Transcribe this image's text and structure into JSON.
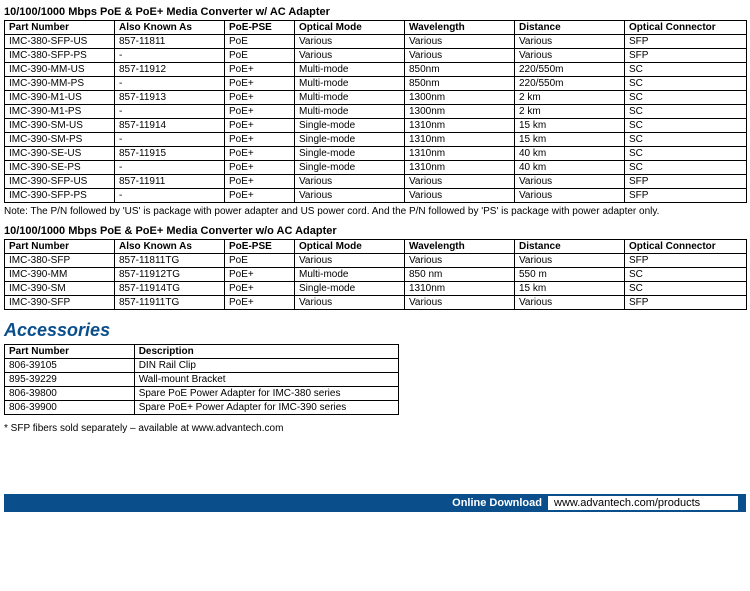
{
  "section1": {
    "title": "10/100/1000 Mbps PoE & PoE+ Media Converter w/ AC Adapter",
    "columns": [
      "Part Number",
      "Also Known As",
      "PoE-PSE",
      "Optical Mode",
      "Wavelength",
      "Distance",
      "Optical Connector"
    ],
    "col_widths": [
      "110px",
      "110px",
      "70px",
      "110px",
      "110px",
      "110px",
      "122px"
    ],
    "rows": [
      [
        "IMC-380-SFP-US",
        "857-11811",
        "PoE",
        "Various",
        "Various",
        "Various",
        "SFP"
      ],
      [
        "IMC-380-SFP-PS",
        "-",
        "PoE",
        "Various",
        "Various",
        "Various",
        "SFP"
      ],
      [
        "IMC-390-MM-US",
        "857-11912",
        "PoE+",
        "Multi-mode",
        "850nm",
        "220/550m",
        "SC"
      ],
      [
        "IMC-390-MM-PS",
        "-",
        "PoE+",
        "Multi-mode",
        "850nm",
        "220/550m",
        "SC"
      ],
      [
        "IMC-390-M1-US",
        "857-11913",
        "PoE+",
        "Multi-mode",
        "1300nm",
        "2 km",
        "SC"
      ],
      [
        "IMC-390-M1-PS",
        "-",
        "PoE+",
        "Multi-mode",
        "1300nm",
        "2 km",
        "SC"
      ],
      [
        "IMC-390-SM-US",
        "857-11914",
        "PoE+",
        "Single-mode",
        "1310nm",
        "15 km",
        "SC"
      ],
      [
        "IMC-390-SM-PS",
        "-",
        "PoE+",
        "Single-mode",
        "1310nm",
        "15 km",
        "SC"
      ],
      [
        "IMC-390-SE-US",
        "857-11915",
        "PoE+",
        "Single-mode",
        "1310nm",
        "40 km",
        "SC"
      ],
      [
        "IMC-390-SE-PS",
        "-",
        "PoE+",
        "Single-mode",
        "1310nm",
        "40 km",
        "SC"
      ],
      [
        "IMC-390-SFP-US",
        "857-11911",
        "PoE+",
        "Various",
        "Various",
        "Various",
        "SFP"
      ],
      [
        "IMC-390-SFP-PS",
        "-",
        "PoE+",
        "Various",
        "Various",
        "Various",
        "SFP"
      ]
    ]
  },
  "note1": "Note: The P/N followed by 'US' is package with power adapter and US power cord. And the P/N followed by 'PS' is package with  power adapter only.",
  "section2": {
    "title": "10/100/1000 Mbps PoE & PoE+ Media Converter w/o AC Adapter",
    "columns": [
      "Part Number",
      "Also Known As",
      "PoE-PSE",
      "Optical Mode",
      "Wavelength",
      "Distance",
      "Optical Connector"
    ],
    "col_widths": [
      "110px",
      "110px",
      "70px",
      "110px",
      "110px",
      "110px",
      "122px"
    ],
    "rows": [
      [
        "IMC-380-SFP",
        "857-11811TG",
        "PoE",
        "Various",
        "Various",
        "Various",
        "SFP"
      ],
      [
        "IMC-390-MM",
        "857-11912TG",
        "PoE+",
        "Multi-mode",
        "850 nm",
        "550 m",
        "SC"
      ],
      [
        "IMC-390-SM",
        "857-11914TG",
        "PoE+",
        "Single-mode",
        "1310nm",
        "15 km",
        "SC"
      ],
      [
        "IMC-390-SFP",
        "857-11911TG",
        "PoE+",
        "Various",
        "Various",
        "Various",
        "SFP"
      ]
    ]
  },
  "accessories": {
    "heading": "Accessories",
    "columns": [
      "Part Number",
      "Description"
    ],
    "col_widths": [
      "130px",
      "265px"
    ],
    "rows": [
      [
        "806-39105",
        "DIN Rail Clip"
      ],
      [
        "895-39229",
        "Wall-mount Bracket"
      ],
      [
        "806-39800",
        "Spare PoE Power Adapter for IMC-380 series"
      ],
      [
        "806-39900",
        "Spare PoE+ Power Adapter for IMC-390 series"
      ]
    ]
  },
  "footnote": "* SFP fibers sold separately – available at www.advantech.com",
  "footer": {
    "label": "Online Download",
    "url": "www.advantech.com/products"
  }
}
